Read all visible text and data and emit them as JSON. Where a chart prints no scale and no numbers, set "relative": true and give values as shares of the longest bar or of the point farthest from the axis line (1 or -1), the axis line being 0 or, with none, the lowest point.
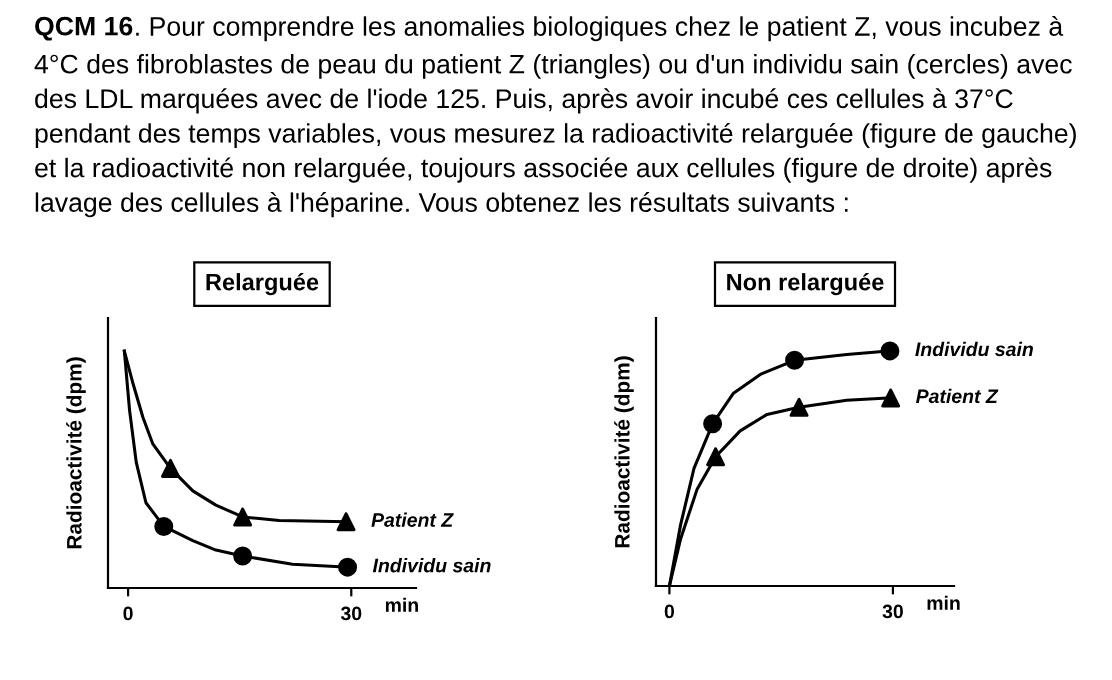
{
  "chart_data": [
    {
      "type": "other",
      "title": "QCM 16",
      "annotations": [
        ". Pour comprendre les anomalies biologiques chez le patient Z, vous incubez à\n4°C des fibroblastes de peau du patient Z (triangles) ou d'un individu sain (cercles) avec\ndes LDL marquées avec de l'iode 125. Puis, après avoir incubé ces cellules à 37°C\npendant des temps variables, vous mesurez la radioactivité relarguée (figure de gauche)\net la radioactivité non relarguée, toujours associée aux cellules (figure de droite) après\nlavage des cellules à l'héparine. Vous obtenez les résultats suivants :"
      ]
    },
    {
      "type": "line",
      "title": "Relarguée",
      "xlabel": "min",
      "ylabel": "Radioactivité (dpm)",
      "relative": true,
      "xlim": [
        -2.7,
        38.7
      ],
      "xticks": [
        0,
        30
      ],
      "tick_labels": "x",
      "legend": false,
      "series": [
        {
          "type": "line",
          "color": "#000000",
          "marker": "none",
          "x": [
            -0.5,
            0.6,
            2.0,
            3.3,
            5.7,
            8.7,
            11.8,
            15.4,
            20.3,
            29.3
          ],
          "values": [
            1,
            0.87,
            0.72,
            0.61,
            0.505,
            0.41,
            0.35,
            0.3,
            0.285,
            0.28
          ]
        },
        {
          "type": "line",
          "color": "#000000",
          "marker": "none",
          "x": [
            -0.5,
            0.2,
            1.1,
            2.4,
            4.8,
            8.7,
            11.8,
            15.4,
            22.1,
            29.5
          ],
          "values": [
            1,
            0.75,
            0.53,
            0.36,
            0.26,
            0.2,
            0.16,
            0.135,
            0.1,
            0.088
          ]
        },
        {
          "type": "scatter",
          "name": "Patient Z",
          "color": "#000000",
          "marker": "triangle",
          "x": [
            5.7,
            15.4,
            29.3
          ],
          "values": [
            0.505,
            0.3,
            0.28
          ]
        },
        {
          "type": "scatter",
          "name": "Individu sain",
          "color": "#000000",
          "marker": "circle",
          "x": [
            4.8,
            15.4,
            29.5
          ],
          "values": [
            0.26,
            0.135,
            0.088
          ]
        }
      ]
    },
    {
      "type": "line",
      "title": "Non relarguée",
      "xlabel": "min",
      "ylabel": "Radioactivité (dpm)",
      "relative": true,
      "xlim": [
        -1.8,
        38.2
      ],
      "xticks": [
        0,
        30
      ],
      "tick_labels": "x",
      "legend": false,
      "series": [
        {
          "type": "line",
          "color": "#000000",
          "marker": "none",
          "x": [
            0,
            1.5,
            3.3,
            5.8,
            8.6,
            12.2,
            16.8,
            23.8,
            29.6
          ],
          "values": [
            0,
            0.26,
            0.5,
            0.69,
            0.82,
            0.9,
            0.96,
            0.985,
            1
          ]
        },
        {
          "type": "line",
          "color": "#000000",
          "marker": "none",
          "x": [
            0,
            1.5,
            3.7,
            6.2,
            9.5,
            13.1,
            17.4,
            23.8,
            29.7
          ],
          "values": [
            0,
            0.2,
            0.41,
            0.55,
            0.66,
            0.73,
            0.76,
            0.79,
            0.8
          ]
        },
        {
          "type": "scatter",
          "name": "Individu sain",
          "color": "#000000",
          "marker": "circle",
          "x": [
            5.8,
            16.8,
            29.6
          ],
          "values": [
            0.69,
            0.96,
            1
          ]
        },
        {
          "type": "scatter",
          "name": "Patient Z",
          "color": "#000000",
          "marker": "triangle",
          "x": [
            6.2,
            17.4,
            29.7
          ],
          "values": [
            0.55,
            0.76,
            0.8
          ]
        }
      ]
    }
  ]
}
